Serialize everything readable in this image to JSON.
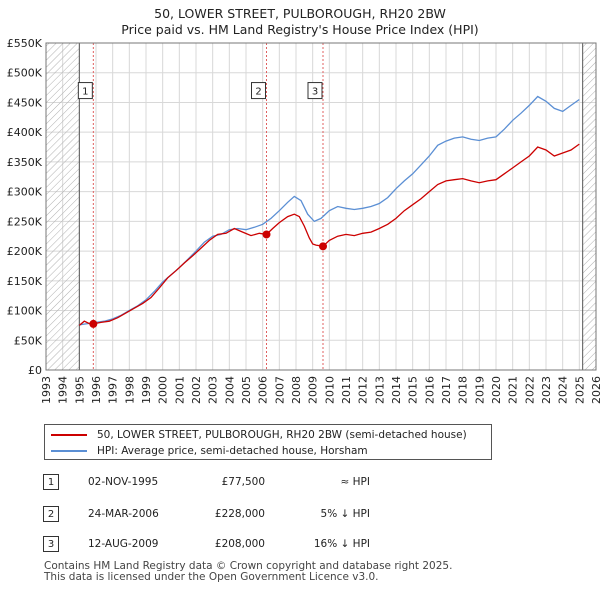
{
  "header": {
    "title": "50, LOWER STREET, PULBOROUGH, RH20 2BW",
    "subtitle": "Price paid vs. HM Land Registry's House Price Index (HPI)"
  },
  "chart_data": {
    "type": "line",
    "xlim": [
      1993,
      2026
    ],
    "ylim": [
      0,
      550000
    ],
    "hatch_before": 1995.0,
    "hatch_after": 2025.2,
    "x_ticks": [
      1993,
      1994,
      1995,
      1996,
      1997,
      1998,
      1999,
      2000,
      2001,
      2002,
      2003,
      2004,
      2005,
      2006,
      2007,
      2008,
      2009,
      2010,
      2011,
      2012,
      2013,
      2014,
      2015,
      2016,
      2017,
      2018,
      2019,
      2020,
      2021,
      2022,
      2023,
      2024,
      2025,
      2026
    ],
    "y_ticks": [
      {
        "value": 0,
        "label": "£0"
      },
      {
        "value": 50000,
        "label": "£50K"
      },
      {
        "value": 100000,
        "label": "£100K"
      },
      {
        "value": 150000,
        "label": "£150K"
      },
      {
        "value": 200000,
        "label": "£200K"
      },
      {
        "value": 250000,
        "label": "£250K"
      },
      {
        "value": 300000,
        "label": "£300K"
      },
      {
        "value": 350000,
        "label": "£350K"
      },
      {
        "value": 400000,
        "label": "£400K"
      },
      {
        "value": 450000,
        "label": "£450K"
      },
      {
        "value": 500000,
        "label": "£500K"
      },
      {
        "value": 550000,
        "label": "£550K"
      }
    ],
    "colors": {
      "property": "#cc0000",
      "hpi": "#5b8fd4",
      "marker_line": "#e06060",
      "grid": "#d8d8d8"
    },
    "series": [
      {
        "name": "50, LOWER STREET, PULBOROUGH, RH20 2BW (semi-detached house)",
        "color": "#cc0000",
        "points": [
          [
            1995.0,
            75000
          ],
          [
            1995.3,
            82000
          ],
          [
            1995.6,
            78000
          ],
          [
            1995.84,
            77500
          ],
          [
            1996.3,
            80000
          ],
          [
            1996.8,
            82000
          ],
          [
            1997.3,
            88000
          ],
          [
            1997.8,
            96000
          ],
          [
            1998.3,
            104000
          ],
          [
            1998.8,
            112000
          ],
          [
            1999.3,
            122000
          ],
          [
            1999.8,
            138000
          ],
          [
            2000.3,
            155000
          ],
          [
            2000.8,
            167000
          ],
          [
            2001.3,
            180000
          ],
          [
            2001.8,
            192000
          ],
          [
            2002.3,
            205000
          ],
          [
            2002.8,
            218000
          ],
          [
            2003.3,
            228000
          ],
          [
            2003.8,
            230000
          ],
          [
            2004.3,
            238000
          ],
          [
            2004.8,
            232000
          ],
          [
            2005.3,
            226000
          ],
          [
            2005.8,
            230000
          ],
          [
            2006.23,
            228000
          ],
          [
            2006.6,
            238000
          ],
          [
            2007.0,
            248000
          ],
          [
            2007.5,
            258000
          ],
          [
            2007.9,
            262000
          ],
          [
            2008.2,
            258000
          ],
          [
            2008.5,
            242000
          ],
          [
            2008.8,
            222000
          ],
          [
            2009.0,
            212000
          ],
          [
            2009.2,
            210000
          ],
          [
            2009.62,
            208000
          ],
          [
            2010.0,
            218000
          ],
          [
            2010.5,
            225000
          ],
          [
            2011.0,
            228000
          ],
          [
            2011.5,
            226000
          ],
          [
            2012.0,
            230000
          ],
          [
            2012.5,
            232000
          ],
          [
            2013.0,
            238000
          ],
          [
            2013.5,
            245000
          ],
          [
            2014.0,
            255000
          ],
          [
            2014.5,
            268000
          ],
          [
            2015.0,
            278000
          ],
          [
            2015.5,
            288000
          ],
          [
            2016.0,
            300000
          ],
          [
            2016.5,
            312000
          ],
          [
            2017.0,
            318000
          ],
          [
            2017.5,
            320000
          ],
          [
            2018.0,
            322000
          ],
          [
            2018.5,
            318000
          ],
          [
            2019.0,
            315000
          ],
          [
            2019.5,
            318000
          ],
          [
            2020.0,
            320000
          ],
          [
            2020.5,
            330000
          ],
          [
            2021.0,
            340000
          ],
          [
            2021.5,
            350000
          ],
          [
            2022.0,
            360000
          ],
          [
            2022.5,
            375000
          ],
          [
            2023.0,
            370000
          ],
          [
            2023.5,
            360000
          ],
          [
            2024.0,
            365000
          ],
          [
            2024.5,
            370000
          ],
          [
            2025.0,
            380000
          ]
        ]
      },
      {
        "name": "HPI: Average price, semi-detached house, Horsham",
        "color": "#5b8fd4",
        "points": [
          [
            1995.0,
            76000
          ],
          [
            1995.5,
            78000
          ],
          [
            1996.0,
            80000
          ],
          [
            1996.5,
            82000
          ],
          [
            1997.0,
            86000
          ],
          [
            1997.5,
            92000
          ],
          [
            1998.0,
            100000
          ],
          [
            1998.5,
            108000
          ],
          [
            1999.0,
            118000
          ],
          [
            1999.5,
            132000
          ],
          [
            2000.0,
            148000
          ],
          [
            2000.5,
            160000
          ],
          [
            2001.0,
            172000
          ],
          [
            2001.5,
            186000
          ],
          [
            2002.0,
            200000
          ],
          [
            2002.5,
            215000
          ],
          [
            2003.0,
            225000
          ],
          [
            2003.5,
            228000
          ],
          [
            2004.0,
            236000
          ],
          [
            2004.5,
            238000
          ],
          [
            2005.0,
            236000
          ],
          [
            2005.5,
            240000
          ],
          [
            2006.0,
            245000
          ],
          [
            2006.5,
            255000
          ],
          [
            2007.0,
            268000
          ],
          [
            2007.5,
            282000
          ],
          [
            2007.9,
            292000
          ],
          [
            2008.3,
            285000
          ],
          [
            2008.7,
            262000
          ],
          [
            2009.1,
            250000
          ],
          [
            2009.5,
            255000
          ],
          [
            2010.0,
            268000
          ],
          [
            2010.5,
            275000
          ],
          [
            2011.0,
            272000
          ],
          [
            2011.5,
            270000
          ],
          [
            2012.0,
            272000
          ],
          [
            2012.5,
            275000
          ],
          [
            2013.0,
            280000
          ],
          [
            2013.5,
            290000
          ],
          [
            2014.0,
            305000
          ],
          [
            2014.5,
            318000
          ],
          [
            2015.0,
            330000
          ],
          [
            2015.5,
            345000
          ],
          [
            2016.0,
            360000
          ],
          [
            2016.5,
            378000
          ],
          [
            2017.0,
            385000
          ],
          [
            2017.5,
            390000
          ],
          [
            2018.0,
            392000
          ],
          [
            2018.5,
            388000
          ],
          [
            2019.0,
            386000
          ],
          [
            2019.5,
            390000
          ],
          [
            2020.0,
            392000
          ],
          [
            2020.5,
            405000
          ],
          [
            2021.0,
            420000
          ],
          [
            2021.5,
            432000
          ],
          [
            2022.0,
            445000
          ],
          [
            2022.5,
            460000
          ],
          [
            2023.0,
            452000
          ],
          [
            2023.5,
            440000
          ],
          [
            2024.0,
            435000
          ],
          [
            2024.5,
            445000
          ],
          [
            2025.0,
            455000
          ]
        ]
      }
    ],
    "sales": [
      {
        "num": "1",
        "x": 1995.84,
        "y": 77500
      },
      {
        "num": "2",
        "x": 2006.23,
        "y": 228000
      },
      {
        "num": "3",
        "x": 2009.62,
        "y": 208000
      }
    ]
  },
  "legend": {
    "property_label": "50, LOWER STREET, PULBOROUGH, RH20 2BW (semi-detached house)",
    "hpi_label": "HPI: Average price, semi-detached house, Horsham"
  },
  "sales_table": [
    {
      "num": "1",
      "date": "02-NOV-1995",
      "price": "£77,500",
      "hpi": "≈ HPI"
    },
    {
      "num": "2",
      "date": "24-MAR-2006",
      "price": "£228,000",
      "hpi": "5% ↓ HPI"
    },
    {
      "num": "3",
      "date": "12-AUG-2009",
      "price": "£208,000",
      "hpi": "16% ↓ HPI"
    }
  ],
  "footer": {
    "line1": "Contains HM Land Registry data © Crown copyright and database right 2025.",
    "line2": "This data is licensed under the Open Government Licence v3.0."
  }
}
